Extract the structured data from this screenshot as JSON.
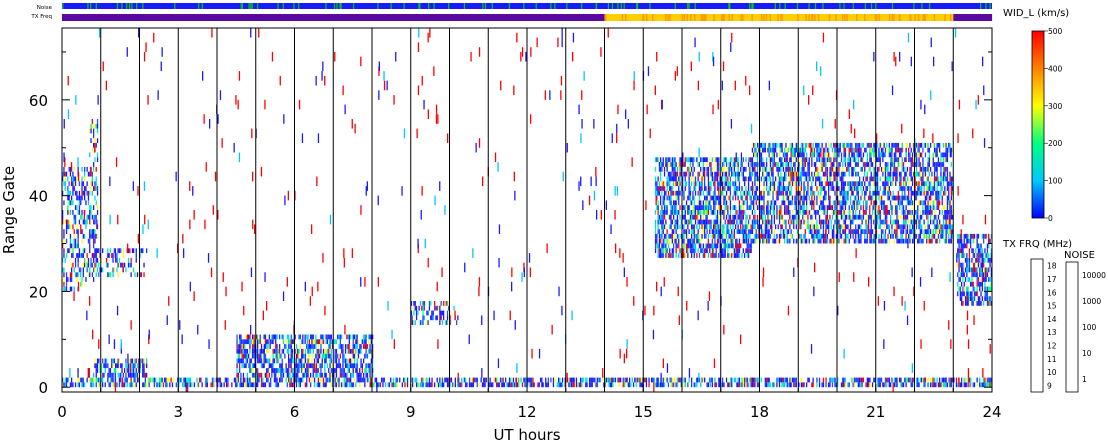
{
  "strips": {
    "noise_label": "Noise",
    "txfreq_label": "TX Freq"
  },
  "chart_data": {
    "type": "heatmap",
    "xlabel": "UT hours",
    "ylabel": "Range Gate",
    "xlim": [
      0,
      24
    ],
    "ylim": [
      -1,
      75
    ],
    "xticks": [
      0,
      3,
      6,
      9,
      12,
      15,
      18,
      21,
      24
    ],
    "yticks": [
      0,
      20,
      40,
      60
    ],
    "vertical_lines_at_hours": [
      1,
      2,
      3,
      4,
      5,
      6,
      7,
      8,
      9,
      10,
      11,
      12,
      13,
      14,
      15,
      16,
      17,
      18,
      19,
      20,
      21,
      22,
      23
    ],
    "grid": false,
    "scatter_regions": [
      {
        "hours": [
          0.0,
          0.7
        ],
        "gates": [
          20,
          45
        ],
        "intensity": "moderate"
      },
      {
        "hours": [
          0.7,
          0.9
        ],
        "gates": [
          22,
          55
        ],
        "intensity": "moderate"
      },
      {
        "hours": [
          0.8,
          2.2
        ],
        "gates": [
          23,
          28
        ],
        "intensity": "moderate"
      },
      {
        "hours": [
          9.0,
          10.2
        ],
        "gates": [
          13,
          17
        ],
        "intensity": "moderate"
      },
      {
        "hours": [
          15.3,
          17.8
        ],
        "gates": [
          27,
          47
        ],
        "intensity": "dense"
      },
      {
        "hours": [
          17.8,
          23.0
        ],
        "gates": [
          30,
          50
        ],
        "intensity": "dense"
      },
      {
        "hours": [
          23.1,
          24.0
        ],
        "gates": [
          17,
          31
        ],
        "intensity": "dense"
      },
      {
        "hours": [
          0.0,
          24.0
        ],
        "gates": [
          0,
          1
        ],
        "intensity": "dense"
      },
      {
        "hours": [
          0.8,
          2.2
        ],
        "gates": [
          2,
          5
        ],
        "intensity": "dense"
      },
      {
        "hours": [
          4.5,
          8.0
        ],
        "gates": [
          2,
          10
        ],
        "intensity": "dense"
      }
    ],
    "tx_freq_strip": [
      {
        "hours": [
          0,
          14
        ],
        "band_mhz": "10-11"
      },
      {
        "hours": [
          14,
          23
        ],
        "band_mhz": "14-15"
      },
      {
        "hours": [
          23,
          24
        ],
        "band_mhz": "10-11"
      }
    ],
    "noise_strip_level": "10-100",
    "colorbars": [
      {
        "title": "WID_L (km/s)",
        "range": [
          0,
          500
        ],
        "ticks": [
          "0",
          "100",
          "200",
          "300",
          "400",
          "500"
        ],
        "colors": [
          "#0000ff",
          "#00c8ff",
          "#00ff80",
          "#ffff00",
          "#ff8000",
          "#ff0000"
        ]
      },
      {
        "title": "TX FRQ (MHz)",
        "ticks": [
          "9",
          "10",
          "11",
          "12",
          "13",
          "14",
          "15",
          "16",
          "17",
          "18"
        ],
        "colors": [
          "#000000",
          "#5a0aa0",
          "#1432ff",
          "#1478ff",
          "#00e0e0",
          "#00cc00",
          "#ffff00",
          "#ffa000",
          "#ff5000",
          "#ff0000"
        ]
      },
      {
        "title": "NOISE",
        "ticks": [
          "1",
          "10",
          "100",
          "1000",
          "10000"
        ],
        "colors": [
          "#000000",
          "#1a1aff",
          "#00cc00",
          "#ffb000",
          "#ff0000"
        ]
      }
    ]
  }
}
